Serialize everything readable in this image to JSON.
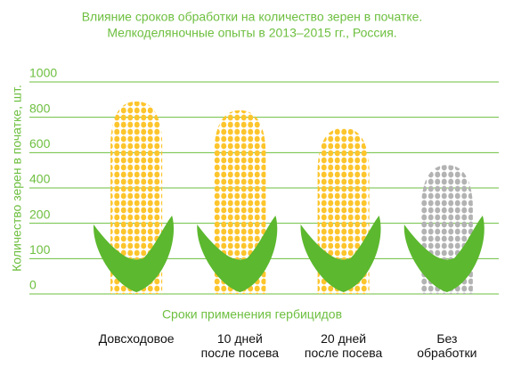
{
  "chart_data": {
    "type": "pictogram-bar",
    "title": "Влияние сроков обработки на количество зерен в початке.",
    "subtitle": "Мелкоделяночные опыты в 2013–2015 гг., Россия.",
    "y_axis_label": "Количество зерен в початке, шт.",
    "x_axis_label": "Сроки применения гербицидов",
    "categories": [
      "Довсходовое",
      "10 дней\nпосле посева",
      "20 дней\nпосле посева",
      "Без\nобработки"
    ],
    "values": [
      890,
      840,
      740,
      530
    ],
    "colors": [
      "#fdc52c",
      "#fdc52c",
      "#fdc52c",
      "#b3b3b3"
    ],
    "leaf_color": "#5cb82e",
    "text_color": "#6dbf3f",
    "ylim": [
      0,
      1000
    ],
    "yticks": [
      1000,
      800,
      600,
      400,
      200,
      100,
      0
    ],
    "grid": true
  }
}
